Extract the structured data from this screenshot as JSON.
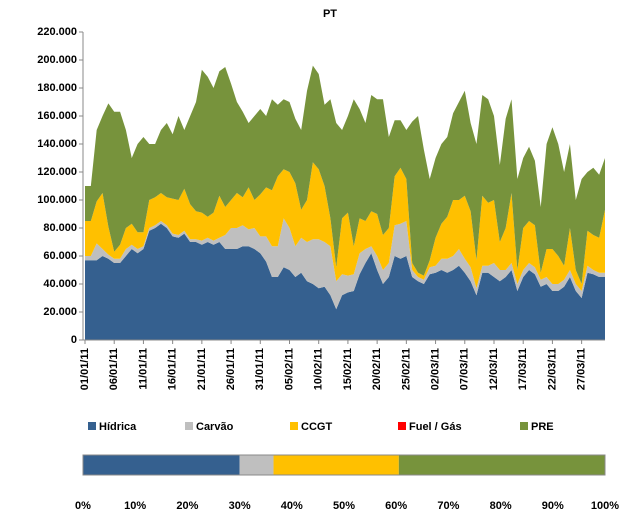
{
  "chart_data": [
    {
      "type": "stacked-area",
      "title": "PT",
      "categories": [
        "01/01/11",
        null,
        null,
        null,
        null,
        "06/01/11",
        null,
        null,
        null,
        null,
        "11/01/11",
        null,
        null,
        null,
        null,
        "16/01/11",
        null,
        null,
        null,
        null,
        "21/01/11",
        null,
        null,
        null,
        null,
        "26/01/11",
        null,
        null,
        null,
        null,
        "31/01/11",
        null,
        null,
        null,
        null,
        "05/02/11",
        null,
        null,
        null,
        null,
        "10/02/11",
        null,
        null,
        null,
        null,
        "15/02/11",
        null,
        null,
        null,
        null,
        "20/02/11",
        null,
        null,
        null,
        null,
        "25/02/11",
        null,
        null,
        null,
        null,
        "02/03/11",
        null,
        null,
        null,
        null,
        "07/03/11",
        null,
        null,
        null,
        null,
        "12/03/11",
        null,
        null,
        null,
        null,
        "17/03/11",
        null,
        null,
        null,
        null,
        "22/03/11",
        null,
        null,
        null,
        null,
        "27/03/11",
        null,
        null,
        null,
        null
      ],
      "series": [
        {
          "name": "Hídrica",
          "color": "#35608f",
          "values": [
            57000,
            57000,
            57000,
            60000,
            58000,
            55000,
            55000,
            60000,
            65000,
            62000,
            65000,
            78000,
            80000,
            83000,
            80000,
            74000,
            73000,
            76000,
            70000,
            70000,
            68000,
            70000,
            68000,
            70000,
            65000,
            65000,
            65000,
            67000,
            67000,
            65000,
            62000,
            56000,
            45000,
            45000,
            52000,
            50000,
            45000,
            48000,
            42000,
            40000,
            37000,
            38000,
            32000,
            22000,
            32000,
            34000,
            35000,
            47000,
            55000,
            62000,
            50000,
            40000,
            45000,
            60000,
            58000,
            60000,
            45000,
            42000,
            40000,
            47000,
            48000,
            50000,
            48000,
            50000,
            53000,
            48000,
            42000,
            32000,
            48000,
            48000,
            45000,
            42000,
            45000,
            50000,
            35000,
            45000,
            50000,
            47000,
            38000,
            40000,
            35000,
            35000,
            38000,
            45000,
            35000,
            30000,
            48000,
            47000,
            45000,
            45000
          ]
        },
        {
          "name": "Carvão",
          "color": "#bfbfbf",
          "values": [
            3000,
            3000,
            12000,
            5000,
            3000,
            3000,
            3000,
            5000,
            3000,
            3000,
            2000,
            2000,
            2000,
            2000,
            2000,
            2000,
            2000,
            2000,
            2000,
            2000,
            3000,
            3000,
            3000,
            3000,
            10000,
            15000,
            15000,
            15000,
            12000,
            15000,
            12000,
            18000,
            22000,
            22000,
            35000,
            30000,
            22000,
            25000,
            28000,
            32000,
            35000,
            32000,
            35000,
            20000,
            15000,
            12000,
            12000,
            15000,
            10000,
            5000,
            10000,
            10000,
            10000,
            22000,
            25000,
            25000,
            5000,
            3000,
            3000,
            5000,
            5000,
            8000,
            10000,
            10000,
            12000,
            10000,
            10000,
            5000,
            5000,
            5000,
            10000,
            8000,
            5000,
            5000,
            5000,
            5000,
            5000,
            5000,
            5000,
            5000,
            5000,
            5000,
            5000,
            5000,
            5000,
            5000,
            5000,
            3000,
            3000,
            3000
          ]
        },
        {
          "name": "CCGT",
          "color": "#ffc000",
          "values": [
            25000,
            25000,
            30000,
            40000,
            20000,
            5000,
            10000,
            15000,
            15000,
            12000,
            10000,
            20000,
            20000,
            20000,
            20000,
            25000,
            25000,
            30000,
            25000,
            20000,
            20000,
            15000,
            20000,
            30000,
            20000,
            20000,
            25000,
            20000,
            30000,
            20000,
            30000,
            35000,
            40000,
            50000,
            35000,
            40000,
            45000,
            20000,
            30000,
            55000,
            50000,
            40000,
            20000,
            10000,
            40000,
            45000,
            20000,
            25000,
            20000,
            25000,
            30000,
            25000,
            25000,
            35000,
            40000,
            30000,
            5000,
            3000,
            3000,
            5000,
            20000,
            25000,
            30000,
            40000,
            35000,
            45000,
            40000,
            20000,
            50000,
            45000,
            45000,
            20000,
            30000,
            50000,
            10000,
            30000,
            30000,
            30000,
            5000,
            20000,
            25000,
            20000,
            10000,
            30000,
            10000,
            5000,
            25000,
            25000,
            25000,
            45000
          ]
        },
        {
          "name": "Fuel / Gás",
          "color": "#ff0000",
          "values": [
            0,
            0,
            0,
            0,
            0,
            0,
            0,
            0,
            0,
            0,
            0,
            0,
            0,
            0,
            0,
            0,
            0,
            0,
            0,
            0,
            0,
            0,
            0,
            0,
            0,
            0,
            0,
            0,
            0,
            0,
            0,
            0,
            0,
            0,
            0,
            0,
            0,
            0,
            0,
            0,
            0,
            0,
            0,
            0,
            0,
            0,
            0,
            0,
            0,
            0,
            0,
            0,
            0,
            0,
            0,
            0,
            0,
            0,
            0,
            0,
            0,
            0,
            0,
            0,
            0,
            0,
            0,
            0,
            0,
            0,
            0,
            0,
            0,
            0,
            0,
            0,
            0,
            0,
            0,
            0,
            0,
            0,
            0,
            0,
            0,
            0,
            0,
            0,
            0,
            0
          ]
        },
        {
          "name": "PRE",
          "color": "#77933c",
          "values": [
            25000,
            25000,
            51000,
            55000,
            88000,
            100000,
            95000,
            70000,
            47000,
            63000,
            68000,
            40000,
            38000,
            45000,
            53000,
            46000,
            60000,
            42000,
            63000,
            78000,
            102000,
            100000,
            89000,
            89000,
            100000,
            83000,
            65000,
            61000,
            46000,
            60000,
            61000,
            51000,
            65000,
            51000,
            50000,
            50000,
            46000,
            57000,
            78000,
            69000,
            68000,
            58000,
            85000,
            103000,
            63000,
            69000,
            105000,
            78000,
            70000,
            83000,
            82000,
            97000,
            65000,
            40000,
            34000,
            35000,
            101000,
            112000,
            90000,
            58000,
            57000,
            57000,
            57000,
            62000,
            70000,
            75000,
            63000,
            83000,
            72000,
            74000,
            60000,
            55000,
            78000,
            67000,
            65000,
            50000,
            53000,
            46000,
            47000,
            75000,
            87000,
            80000,
            67000,
            60000,
            50000,
            75000,
            42000,
            48000,
            45000,
            37000
          ]
        }
      ],
      "ylim": [
        0,
        220000
      ],
      "yticks": [
        {
          "value": 0,
          "label": "0"
        },
        {
          "value": 20000,
          "label": "20.000"
        },
        {
          "value": 40000,
          "label": "40.000"
        },
        {
          "value": 60000,
          "label": "60.000"
        },
        {
          "value": 80000,
          "label": "80.000"
        },
        {
          "value": 100000,
          "label": "100.000"
        },
        {
          "value": 120000,
          "label": "120.000"
        },
        {
          "value": 140000,
          "label": "140.000"
        },
        {
          "value": 160000,
          "label": "160.000"
        },
        {
          "value": 180000,
          "label": "180.000"
        },
        {
          "value": 200000,
          "label": "200.000"
        },
        {
          "value": 220000,
          "label": "220.000"
        }
      ],
      "grid": false,
      "legend": "bottom"
    },
    {
      "type": "stacked-bar-100",
      "values": [
        30,
        6.5,
        24,
        0,
        39.5
      ],
      "colors": [
        "#35608f",
        "#bfbfbf",
        "#ffc000",
        "#ff0000",
        "#77933c"
      ],
      "xlim": [
        0,
        100
      ],
      "xticks": [
        {
          "value": 0,
          "label": "0%"
        },
        {
          "value": 10,
          "label": "10%"
        },
        {
          "value": 20,
          "label": "20%"
        },
        {
          "value": 30,
          "label": "30%"
        },
        {
          "value": 40,
          "label": "40%"
        },
        {
          "value": 50,
          "label": "50%"
        },
        {
          "value": 60,
          "label": "60%"
        },
        {
          "value": 70,
          "label": "70%"
        },
        {
          "value": 80,
          "label": "80%"
        },
        {
          "value": 90,
          "label": "90%"
        },
        {
          "value": 100,
          "label": "100%"
        }
      ]
    }
  ]
}
